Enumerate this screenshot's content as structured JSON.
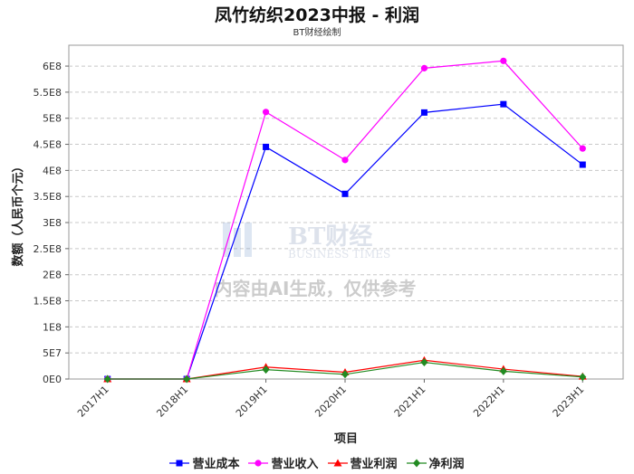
{
  "chart_data": {
    "type": "line",
    "title": "凤竹纺织2023中报 - 利润",
    "subtitle": "BT财经绘制",
    "xlabel": "项目",
    "ylabel": "数额（人民币个元）",
    "categories": [
      "2017H1",
      "2018H1",
      "2019H1",
      "2020H1",
      "2021H1",
      "2022H1",
      "2023H1"
    ],
    "ylim": [
      0,
      640000000
    ],
    "yticks": [
      0,
      50000000,
      100000000,
      150000000,
      200000000,
      250000000,
      300000000,
      350000000,
      400000000,
      450000000,
      500000000,
      550000000,
      600000000
    ],
    "ytick_labels": [
      "0E0",
      "5E7",
      "1E8",
      "1.5E8",
      "2E8",
      "2.5E8",
      "3E8",
      "3.5E8",
      "4E8",
      "4.5E8",
      "5E8",
      "5.5E8",
      "6E8"
    ],
    "grid": true,
    "legend_position": "bottom",
    "series": [
      {
        "name": "营业成本",
        "color": "#0000ff",
        "marker": "square",
        "values": [
          0,
          0,
          445000000,
          355000000,
          511000000,
          527000000,
          411000000
        ]
      },
      {
        "name": "营业收入",
        "color": "#ff00ff",
        "marker": "circle",
        "values": [
          0,
          0,
          512000000,
          420000000,
          596000000,
          610000000,
          442000000
        ]
      },
      {
        "name": "营业利润",
        "color": "#ff0000",
        "marker": "triangle",
        "values": [
          0,
          0,
          23000000,
          13000000,
          36000000,
          19000000,
          5000000
        ]
      },
      {
        "name": "净利润",
        "color": "#228b22",
        "marker": "diamond",
        "values": [
          0,
          0,
          18000000,
          9000000,
          32000000,
          15000000,
          4000000
        ]
      }
    ]
  },
  "watermark": {
    "logo_text": "BT财经",
    "logo_sub": "BUSINESS TIMES",
    "notice": "内容由AI生成，仅供参考"
  }
}
